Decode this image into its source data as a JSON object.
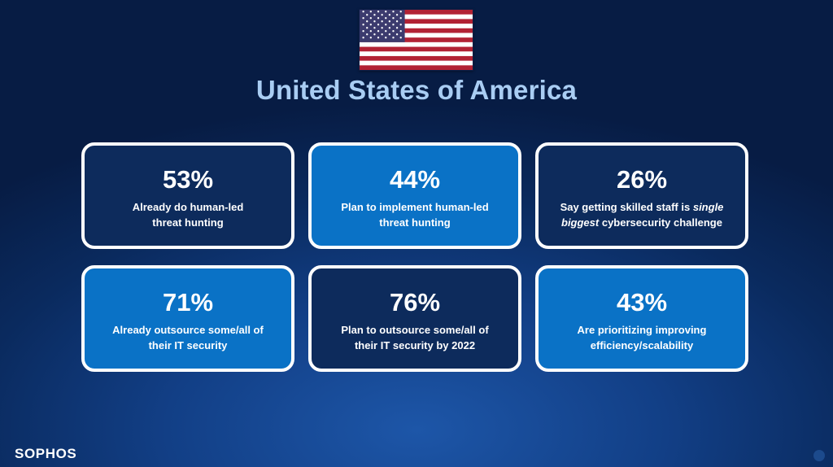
{
  "title": "United States of America",
  "brand": "SOPHOS",
  "flag": {
    "name": "us-flag-icon",
    "colors": {
      "red": "#b22234",
      "white": "#ffffff",
      "blue": "#3c3b6e"
    }
  },
  "colors": {
    "dark_card": "#0d2b5c",
    "light_card": "#0a72c6",
    "title": "#a9cdf3"
  },
  "cards": [
    {
      "stat": "53%",
      "line1": "Already do human-led",
      "line2": "threat hunting"
    },
    {
      "stat": "44%",
      "line1": "Plan to implement human-led",
      "line2": "threat hunting"
    },
    {
      "stat": "26%",
      "line1a": "Say getting skilled staff is ",
      "line1b": "single",
      "line2a": "biggest",
      "line2b": " cybersecurity challenge"
    },
    {
      "stat": "71%",
      "line1": "Already outsource some/all of",
      "line2": "their IT security"
    },
    {
      "stat": "76%",
      "line1": "Plan to outsource some/all of",
      "line2": "their IT security by 2022"
    },
    {
      "stat": "43%",
      "line1": "Are prioritizing improving",
      "line2": "efficiency/scalability"
    }
  ]
}
